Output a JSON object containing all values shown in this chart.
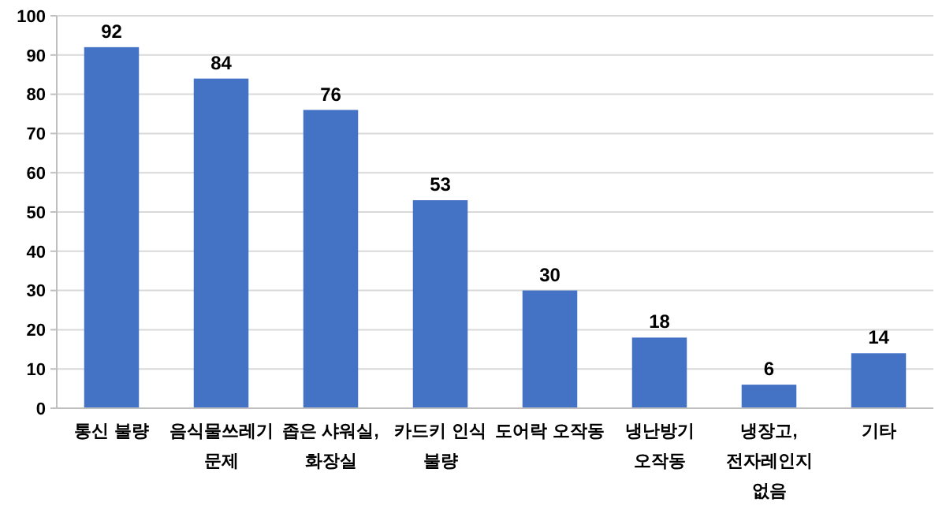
{
  "chart_data": {
    "type": "bar",
    "categories": [
      "통신 불량",
      "음식물쓰레기 문제",
      "좁은 샤워실, 화장실",
      "카드키 인식 불량",
      "도어락 오작동",
      "냉난방기 오작동",
      "냉장고, 전자레인지 없음",
      "기타"
    ],
    "values": [
      92,
      84,
      76,
      53,
      30,
      18,
      6,
      14
    ],
    "color": "#4472c4",
    "ylim": [
      0,
      100
    ],
    "yticks": [
      0,
      10,
      20,
      30,
      40,
      50,
      60,
      70,
      80,
      90,
      100
    ],
    "grid": "y",
    "data_labels": true
  }
}
